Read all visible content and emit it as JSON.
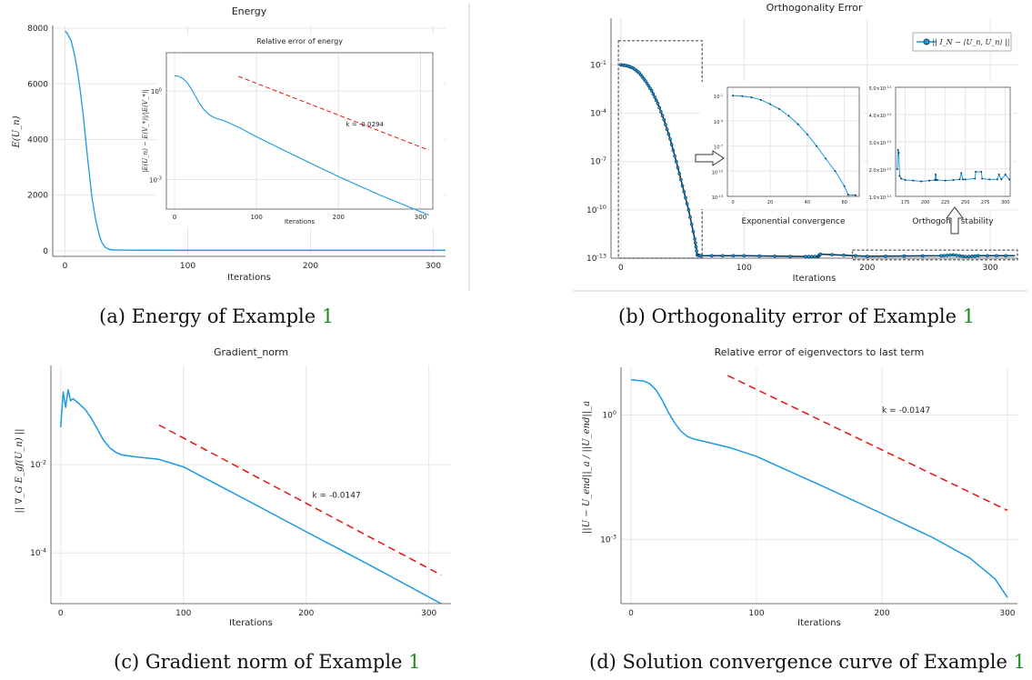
{
  "captions": {
    "a": {
      "text": "(a) Energy of Example ",
      "ref": "1"
    },
    "b": {
      "text": "(b) Orthogonality error of Example ",
      "ref": "1"
    },
    "c": {
      "text": "(c) Gradient norm of Example ",
      "ref": "1"
    },
    "d": {
      "text": "(d) Solution convergence curve of Example ",
      "ref": "1"
    }
  },
  "colors": {
    "curve": "#1a9ae0",
    "trend": "#e8130f",
    "dark_marker": "#0d3b57",
    "grid": "#e6e6e6",
    "caption_ref": "#1f8a1f"
  },
  "chart_data": [
    {
      "id": "energy",
      "type": "line",
      "title": "Energy",
      "xlabel": "Iterations",
      "ylabel": "E(U_n)",
      "xlim": [
        -10,
        310
      ],
      "ylim": [
        -200,
        8100
      ],
      "x_ticks": [
        0,
        100,
        200,
        300
      ],
      "y_ticks": [
        0,
        2000,
        4000,
        6000,
        8000
      ],
      "y_tick_labels": [
        "0",
        "2000",
        "4000",
        "6000",
        "8000"
      ],
      "series": [
        {
          "x": [
            0,
            2,
            5,
            8,
            10,
            12,
            15,
            18,
            20,
            22,
            25,
            28,
            30,
            33,
            36,
            40,
            50,
            60,
            100,
            200,
            310
          ],
          "y": [
            7900,
            7800,
            7550,
            7000,
            6500,
            5900,
            4800,
            3500,
            2700,
            1900,
            1100,
            550,
            300,
            120,
            50,
            30,
            25,
            22,
            20,
            20,
            20
          ]
        }
      ],
      "inset": {
        "title": "Relative error of energy",
        "xlabel": "Iterations",
        "ylabel": "|E(U_n) − E(V_*)|/|E(V_*)|",
        "xlim": [
          -10,
          315
        ],
        "ylim": [
          -4,
          1.3
        ],
        "scale": "log10",
        "x_ticks": [
          0,
          100,
          200,
          300
        ],
        "y_ticks": [
          0,
          -3
        ],
        "y_tick_labels": [
          "10^0",
          "10^-3"
        ],
        "series": [
          {
            "x": [
              0,
              5,
              10,
              15,
              20,
              25,
              30,
              35,
              40,
              45,
              50,
              60,
              80,
              100,
              150,
              200,
              250,
              310
            ],
            "y": [
              0.52,
              0.5,
              0.43,
              0.3,
              0.1,
              -0.15,
              -0.4,
              -0.6,
              -0.75,
              -0.85,
              -0.92,
              -1.0,
              -1.25,
              -1.55,
              -2.23,
              -2.9,
              -3.52,
              -4.2
            ]
          }
        ],
        "trend": {
          "x": [
            78,
            310
          ],
          "y": [
            0.5,
            -2.0
          ]
        },
        "annotation": "k = -0.0294",
        "annotation_pos": {
          "x": 232,
          "y": -1.2
        }
      }
    },
    {
      "id": "orthogonality",
      "type": "line",
      "title": "Orthogonality Error",
      "xlabel": "Iterations",
      "ylabel": "",
      "xlim": [
        -8,
        322
      ],
      "ylim": [
        -13,
        1.9
      ],
      "scale": "log10",
      "x_ticks": [
        0,
        100,
        200,
        300
      ],
      "y_ticks": [
        -1,
        -4,
        -7,
        -10,
        -13
      ],
      "y_tick_labels": [
        "10^-1",
        "10^-4",
        "10^-7",
        "10^-10",
        "10^-13"
      ],
      "legend": {
        "label": "|| I_N − ⟨U_n, U_n⟩ ||",
        "position": "top-right"
      },
      "series": [
        {
          "x": [
            0,
            5,
            10,
            15,
            20,
            25,
            30,
            35,
            40,
            45,
            50,
            55,
            60,
            62,
            65,
            100,
            150,
            160,
            162,
            200,
            260,
            270,
            280,
            290,
            320
          ],
          "y": [
            -1.0,
            -1.05,
            -1.2,
            -1.5,
            -2.0,
            -2.6,
            -3.4,
            -4.4,
            -5.6,
            -7.0,
            -8.5,
            -10.0,
            -11.8,
            -12.8,
            -12.85,
            -12.85,
            -12.9,
            -12.9,
            -12.75,
            -12.88,
            -12.85,
            -12.8,
            -12.9,
            -12.85,
            -12.85
          ]
        }
      ],
      "boxes": [
        {
          "x": [
            -2,
            66
          ],
          "y": [
            -13,
            0.5
          ]
        },
        {
          "x": [
            188,
            322
          ],
          "y": [
            -13.1,
            -12.5
          ]
        }
      ],
      "insets": [
        {
          "caption": "Exponential convergence",
          "x_ticks": [
            0,
            20,
            40,
            60
          ],
          "xlim": [
            -3,
            68
          ],
          "ylim": [
            -13,
            0
          ],
          "y_ticks": [
            -1,
            -4,
            -7,
            -10,
            -13
          ],
          "y_tick_labels": [
            "10^-1",
            "10^-4",
            "10^-7",
            "10^-10",
            "10^-13"
          ],
          "series": [
            {
              "x": [
                0,
                5,
                10,
                15,
                20,
                25,
                30,
                35,
                40,
                45,
                50,
                55,
                60,
                62,
                66
              ],
              "y": [
                -1.0,
                -1.05,
                -1.2,
                -1.5,
                -2.0,
                -2.6,
                -3.4,
                -4.4,
                -5.6,
                -7.0,
                -8.5,
                -10.0,
                -11.8,
                -12.8,
                -12.85
              ]
            }
          ]
        },
        {
          "caption": "Orthogonal stability",
          "x_ticks": [
            175,
            200,
            225,
            250,
            275,
            300
          ],
          "xlim": [
            163,
            306
          ],
          "ylim": [
            1.0,
            5.0
          ],
          "y_ticks": [
            1.0,
            2.0,
            3.0,
            4.0,
            5.0
          ],
          "y_tick_labels": [
            "1.0×10^-13",
            "2.0×10^-13",
            "3.0×10^-13",
            "4.0×10^-13",
            "5.0×10^-13"
          ],
          "series": [
            {
              "x": [
                165,
                166,
                167,
                168,
                170,
                175,
                185,
                195,
                205,
                212,
                213,
                214,
                215,
                225,
                235,
                243,
                245,
                247,
                250,
                262,
                263,
                270,
                271,
                280,
                290,
                292,
                295,
                300,
                305
              ],
              "y": [
                2.0,
                2.7,
                2.6,
                1.75,
                1.65,
                1.6,
                1.58,
                1.55,
                1.58,
                1.6,
                1.8,
                1.6,
                1.6,
                1.58,
                1.6,
                1.62,
                1.85,
                1.62,
                1.62,
                1.65,
                1.9,
                1.9,
                1.65,
                1.62,
                1.62,
                1.8,
                1.62,
                1.8,
                1.62
              ]
            }
          ]
        }
      ]
    },
    {
      "id": "gradient",
      "type": "line",
      "title": "Gradient_norm",
      "xlabel": "Iterations",
      "ylabel": "|| ∇_G E_gf(U_n) ||",
      "xlim": [
        -8,
        318
      ],
      "ylim": [
        -5.15,
        0.25
      ],
      "scale": "log10",
      "x_ticks": [
        0,
        100,
        200,
        300
      ],
      "y_ticks": [
        -2,
        -4
      ],
      "y_tick_labels": [
        "10^-2",
        "10^-4"
      ],
      "series": [
        {
          "x": [
            0,
            2,
            4,
            6,
            8,
            10,
            15,
            20,
            25,
            30,
            35,
            40,
            45,
            50,
            60,
            80,
            100,
            150,
            200,
            250,
            310
          ],
          "y": [
            -1.15,
            -0.35,
            -0.7,
            -0.3,
            -0.55,
            -0.5,
            -0.62,
            -0.75,
            -0.95,
            -1.2,
            -1.45,
            -1.62,
            -1.72,
            -1.78,
            -1.82,
            -1.88,
            -2.05,
            -2.78,
            -3.52,
            -4.25,
            -5.15
          ]
        }
      ],
      "trend": {
        "x": [
          80,
          310
        ],
        "y": [
          -1.1,
          -4.5
        ]
      },
      "annotation": "k = -0.0147",
      "annotation_pos": {
        "x": 205,
        "y": -2.75
      }
    },
    {
      "id": "solution",
      "type": "line",
      "title": "Relative error of eigenvectors to last term",
      "xlabel": "Iterations",
      "ylabel": "||U − U_end||_a / ||U_end||_a",
      "xlim": [
        -8,
        308
      ],
      "ylim": [
        -4.55,
        1.15
      ],
      "scale": "log10",
      "x_ticks": [
        0,
        100,
        200,
        300
      ],
      "y_ticks": [
        0,
        -3
      ],
      "y_tick_labels": [
        "10^0",
        "10^-3"
      ],
      "series": [
        {
          "x": [
            0,
            10,
            15,
            20,
            25,
            30,
            35,
            40,
            45,
            50,
            60,
            80,
            100,
            150,
            200,
            240,
            270,
            290,
            300
          ],
          "y": [
            0.85,
            0.82,
            0.75,
            0.6,
            0.35,
            0.05,
            -0.2,
            -0.4,
            -0.52,
            -0.58,
            -0.65,
            -0.8,
            -1.0,
            -1.68,
            -2.38,
            -2.95,
            -3.45,
            -3.95,
            -4.4
          ]
        }
      ],
      "trend": {
        "x": [
          77,
          300
        ],
        "y": [
          0.95,
          -2.3
        ]
      },
      "annotation": "k = -0.0147",
      "annotation_pos": {
        "x": 200,
        "y": 0.05
      }
    }
  ]
}
